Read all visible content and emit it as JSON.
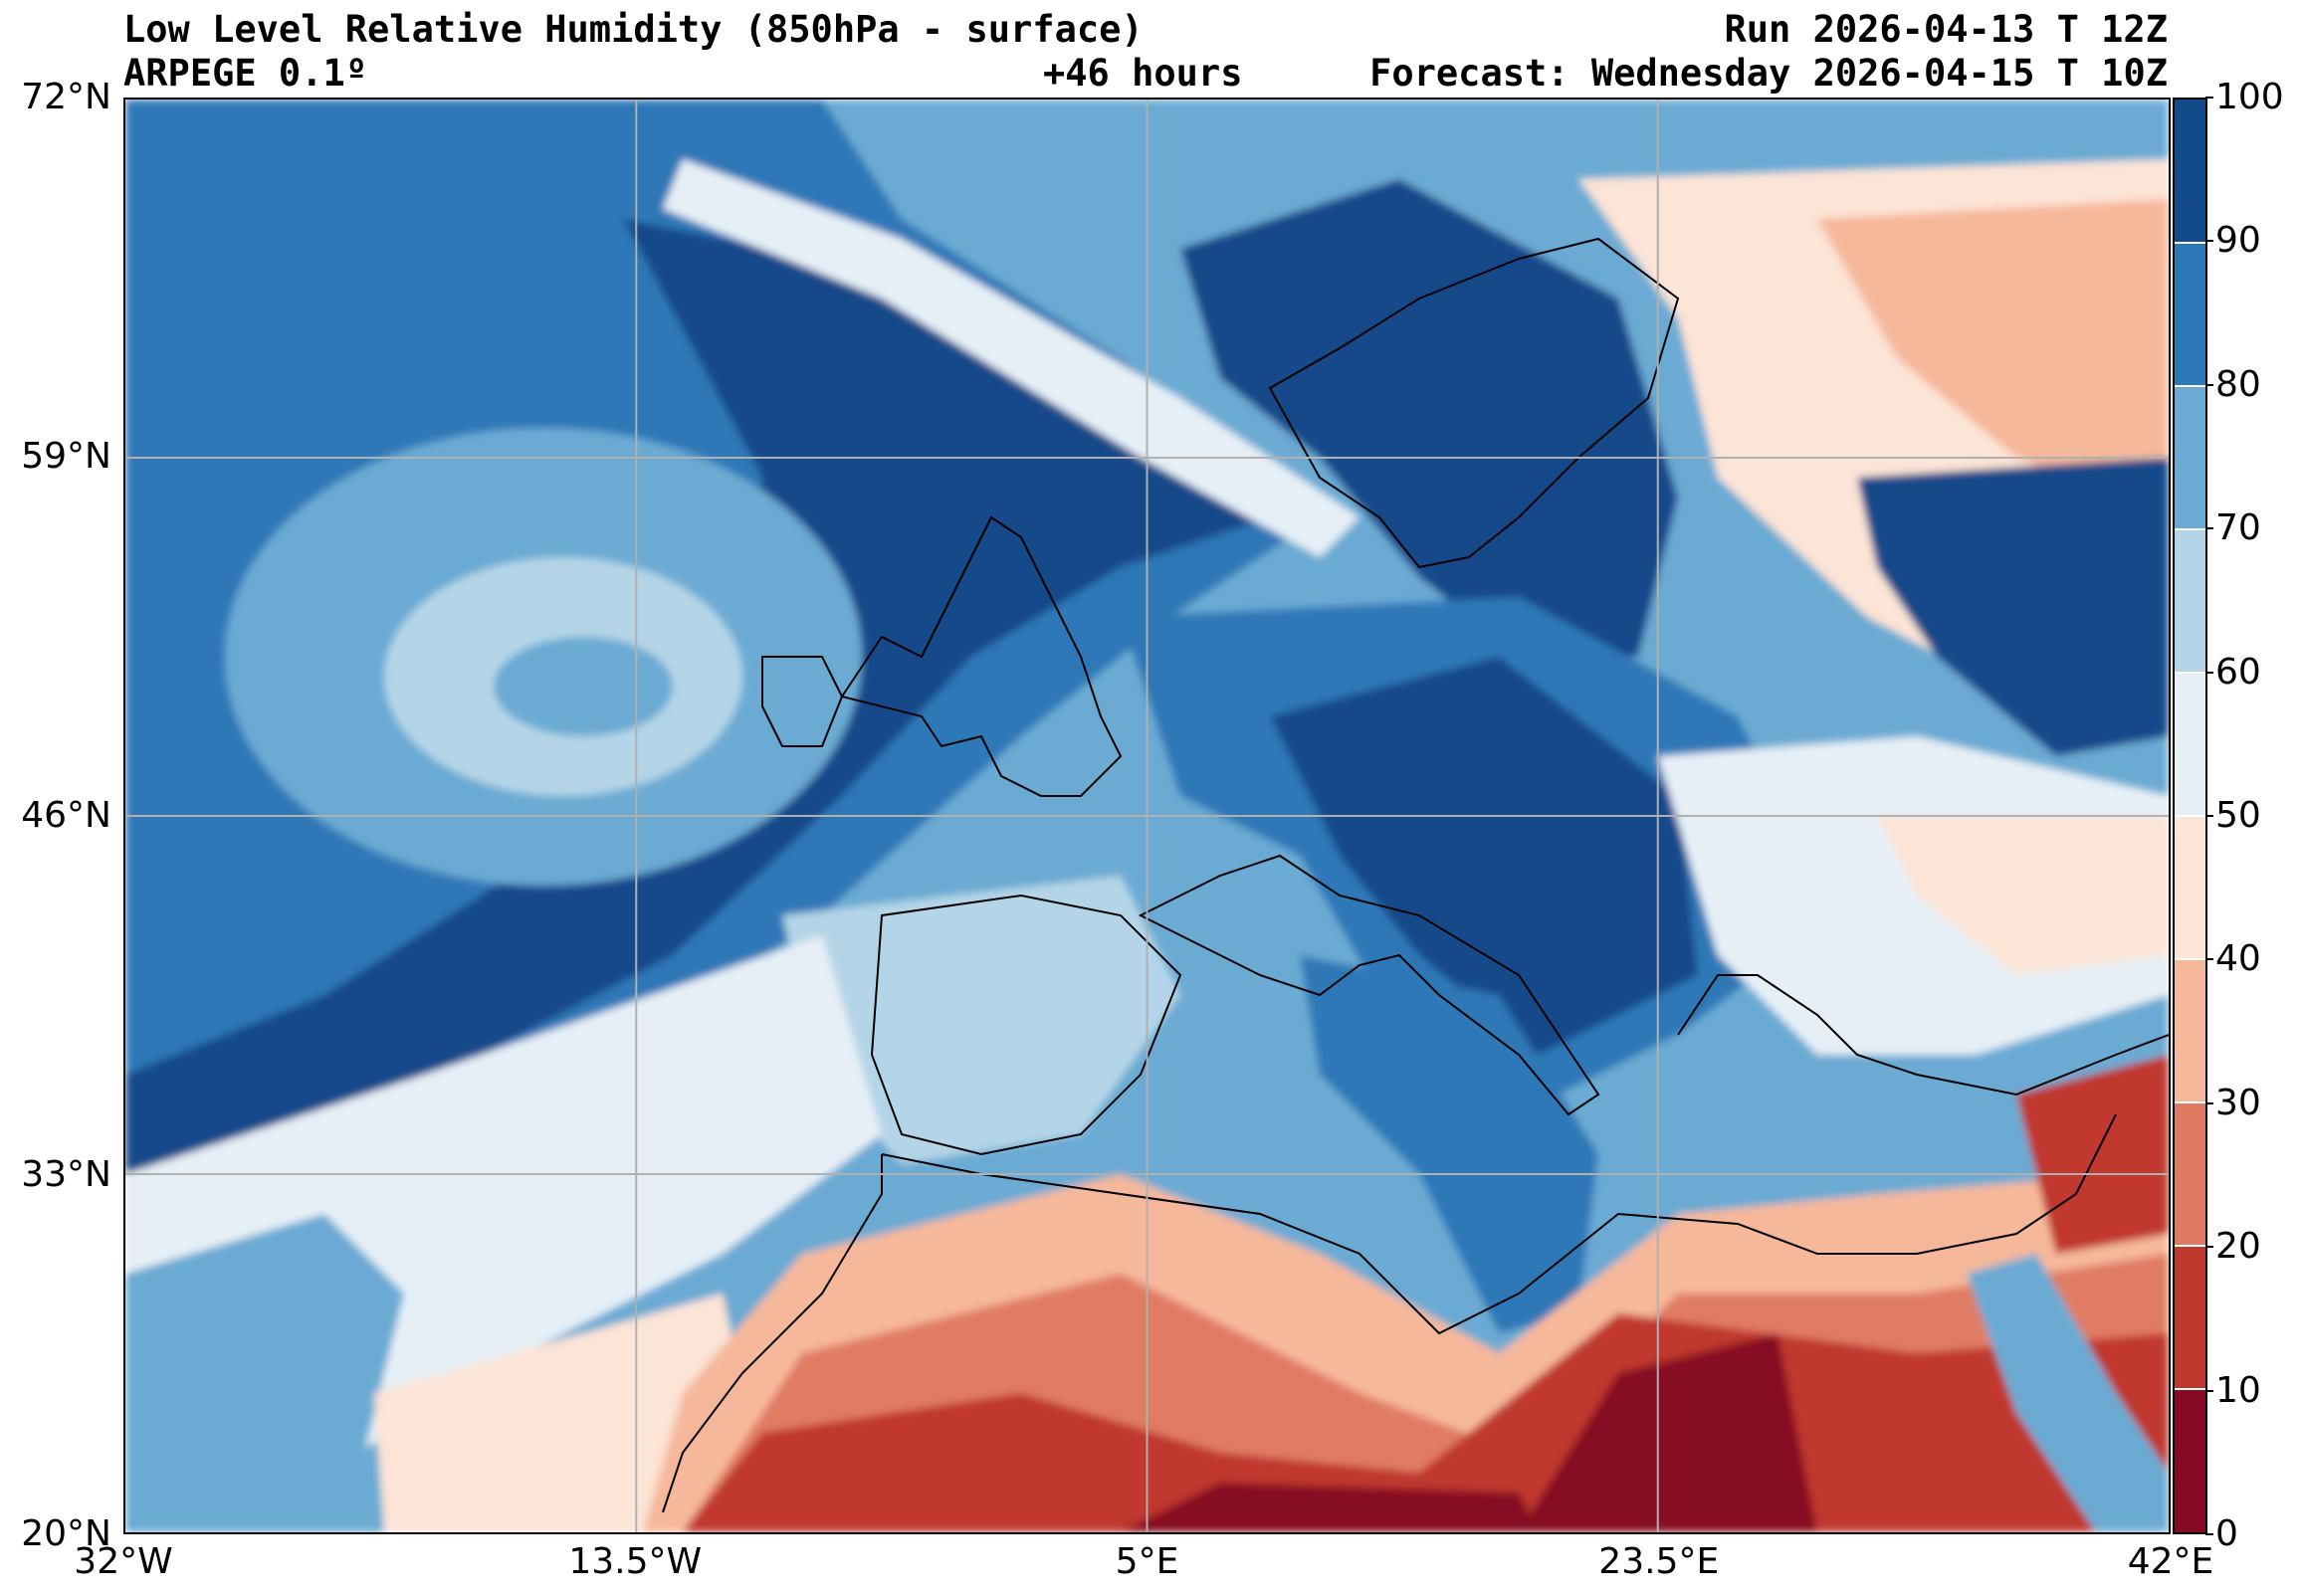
{
  "header": {
    "title": "Low Level Relative Humidity (850hPa - surface)",
    "model": "ARPEGE 0.1º",
    "lead_time": "+46 hours",
    "run": "Run 2026-04-13 T 12Z",
    "forecast": "Forecast: Wednesday 2026-04-15 T 10Z"
  },
  "map": {
    "lat_labels": [
      "72°N",
      "59°N",
      "46°N",
      "33°N",
      "20°N"
    ],
    "lon_labels": [
      "32°W",
      "13.5°W",
      "5°E",
      "23.5°E",
      "42°E"
    ],
    "lat_range": [
      20,
      72
    ],
    "lon_range": [
      -32,
      42
    ],
    "gridlines": true,
    "gridline_color": "#b0b0b0"
  },
  "colorbar": {
    "labels": [
      "100",
      "90",
      "80",
      "70",
      "60",
      "50",
      "40",
      "30",
      "20",
      "10",
      "0"
    ],
    "levels": [
      0,
      10,
      20,
      30,
      40,
      50,
      60,
      70,
      80,
      90,
      100
    ],
    "colors": [
      "#870a24",
      "#c0392f",
      "#e07b63",
      "#f6b89b",
      "#fce4d6",
      "#e6eff6",
      "#b4d5e7",
      "#6aaad3",
      "#2d78b7",
      "#124a8a"
    ],
    "placement": "right"
  }
}
